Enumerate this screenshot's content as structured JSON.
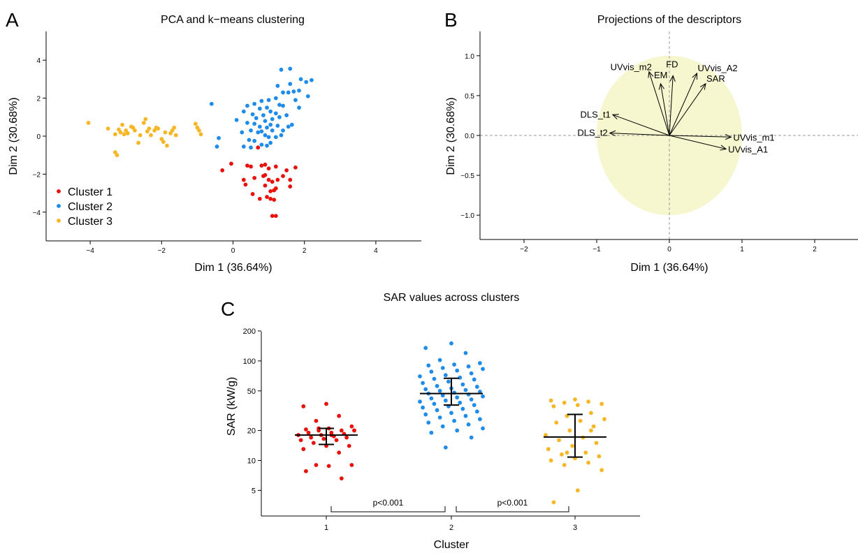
{
  "chart_data": [
    {
      "panel_letter": "A",
      "type": "scatter",
      "title": "PCA and k−means clustering",
      "xlabel": "Dim 1 (36.64%)",
      "ylabel": "Dim 2 (30.68%)",
      "xlim": [
        -5,
        5
      ],
      "ylim": [
        -5,
        5
      ],
      "xticks": [
        -4,
        -2,
        0,
        2,
        4
      ],
      "yticks": [
        -4,
        -2,
        0,
        2,
        4
      ],
      "grid": false,
      "legend_position": "bottom-left",
      "series": [
        {
          "name": "Cluster 1",
          "color": "#e8120c",
          "points": [
            [
              0.7,
              -0.6
            ],
            [
              -0.3,
              -1.8
            ],
            [
              -0.05,
              -1.45
            ],
            [
              0.4,
              -1.55
            ],
            [
              0.5,
              -1.6
            ],
            [
              0.8,
              -1.55
            ],
            [
              0.9,
              -1.5
            ],
            [
              1.0,
              -1.7
            ],
            [
              1.2,
              -1.6
            ],
            [
              1.5,
              -1.8
            ],
            [
              1.75,
              -1.65
            ],
            [
              0.3,
              -2.3
            ],
            [
              0.6,
              -2.2
            ],
            [
              0.9,
              -2.05
            ],
            [
              1.0,
              -2.3
            ],
            [
              1.1,
              -2.4
            ],
            [
              1.25,
              -2.3
            ],
            [
              1.6,
              -2.3
            ],
            [
              0.35,
              -2.55
            ],
            [
              0.9,
              -2.6
            ],
            [
              1.2,
              -2.75
            ],
            [
              1.6,
              -2.65
            ],
            [
              1.05,
              -2.9
            ],
            [
              1.15,
              -2.85
            ],
            [
              0.75,
              -3.3
            ],
            [
              0.95,
              -3.2
            ],
            [
              1.05,
              -3.3
            ],
            [
              1.15,
              -3.35
            ],
            [
              0.55,
              -3.05
            ],
            [
              1.1,
              -4.2
            ],
            [
              1.2,
              -4.2
            ],
            [
              0.85,
              -2.1
            ],
            [
              1.4,
              -2.1
            ]
          ]
        },
        {
          "name": "Cluster 2",
          "color": "#1f8cea",
          "points": [
            [
              1.6,
              3.55
            ],
            [
              1.35,
              3.5
            ],
            [
              2.2,
              2.95
            ],
            [
              1.9,
              3.0
            ],
            [
              1.25,
              2.65
            ],
            [
              1.6,
              2.75
            ],
            [
              2.05,
              2.85
            ],
            [
              1.4,
              2.3
            ],
            [
              1.7,
              2.35
            ],
            [
              1.85,
              2.4
            ],
            [
              2.1,
              2.1
            ],
            [
              0.8,
              1.85
            ],
            [
              1.0,
              1.9
            ],
            [
              1.2,
              2.0
            ],
            [
              1.55,
              2.3
            ],
            [
              1.75,
              1.9
            ],
            [
              1.85,
              1.5
            ],
            [
              -0.6,
              1.7
            ],
            [
              0.4,
              1.6
            ],
            [
              0.6,
              1.7
            ],
            [
              0.75,
              1.45
            ],
            [
              0.95,
              1.5
            ],
            [
              1.05,
              1.3
            ],
            [
              1.2,
              1.2
            ],
            [
              1.4,
              1.6
            ],
            [
              1.3,
              1.65
            ],
            [
              0.3,
              1.3
            ],
            [
              0.55,
              1.15
            ],
            [
              0.65,
              0.95
            ],
            [
              0.85,
              1.1
            ],
            [
              0.9,
              0.8
            ],
            [
              1.1,
              0.9
            ],
            [
              1.3,
              1.0
            ],
            [
              1.5,
              1.1
            ],
            [
              0.1,
              0.85
            ],
            [
              0.4,
              0.7
            ],
            [
              0.6,
              0.65
            ],
            [
              0.75,
              0.5
            ],
            [
              0.95,
              0.45
            ],
            [
              1.05,
              0.6
            ],
            [
              1.25,
              0.55
            ],
            [
              1.4,
              0.3
            ],
            [
              1.55,
              0.5
            ],
            [
              1.65,
              0.6
            ],
            [
              0.25,
              0.2
            ],
            [
              0.5,
              0.3
            ],
            [
              0.7,
              0.2
            ],
            [
              0.9,
              0.05
            ],
            [
              1.0,
              -0.05
            ],
            [
              1.2,
              -0.05
            ],
            [
              1.35,
              0.05
            ],
            [
              -0.4,
              -0.1
            ],
            [
              0.45,
              -0.2
            ],
            [
              0.6,
              -0.25
            ],
            [
              0.8,
              -0.45
            ],
            [
              0.95,
              -0.5
            ],
            [
              1.05,
              -0.35
            ],
            [
              -0.45,
              -0.55
            ],
            [
              0.3,
              -0.55
            ],
            [
              0.5,
              -0.6
            ],
            [
              1.1,
              0.3
            ],
            [
              0.8,
              0.25
            ]
          ]
        },
        {
          "name": "Cluster 3",
          "color": "#f6b626",
          "points": [
            [
              -4.05,
              0.7
            ],
            [
              -3.5,
              0.4
            ],
            [
              -3.3,
              0.1
            ],
            [
              -3.2,
              0.35
            ],
            [
              -3.15,
              0.2
            ],
            [
              -3.1,
              0.6
            ],
            [
              -3.05,
              0.1
            ],
            [
              -3.0,
              0.3
            ],
            [
              -2.95,
              0.15
            ],
            [
              -2.85,
              0.5
            ],
            [
              -2.75,
              0.3
            ],
            [
              -2.65,
              -0.35
            ],
            [
              -2.6,
              0.05
            ],
            [
              -2.5,
              0.7
            ],
            [
              -2.45,
              0.9
            ],
            [
              -2.4,
              0.25
            ],
            [
              -2.35,
              0.4
            ],
            [
              -2.3,
              0.05
            ],
            [
              -2.2,
              0.3
            ],
            [
              -2.15,
              0.45
            ],
            [
              -2.1,
              0.4
            ],
            [
              -2.0,
              -0.15
            ],
            [
              -1.95,
              -0.3
            ],
            [
              -1.9,
              0.2
            ],
            [
              -1.85,
              -0.5
            ],
            [
              -1.75,
              0.15
            ],
            [
              -1.7,
              0.3
            ],
            [
              -1.65,
              0.45
            ],
            [
              -1.05,
              0.65
            ],
            [
              -1.0,
              0.45
            ],
            [
              -0.95,
              0.3
            ],
            [
              -0.9,
              0.1
            ],
            [
              -3.3,
              -0.85
            ],
            [
              -3.25,
              -1.0
            ],
            [
              -2.8,
              0.45
            ],
            [
              -1.6,
              0.05
            ]
          ]
        }
      ]
    },
    {
      "panel_letter": "B",
      "type": "scatter",
      "subtype": "variable-correlation-circle",
      "title": "Projections of the descriptors",
      "xlabel": "Dim 1 (36.64%)",
      "ylabel": "Dim 2 (30.68%)",
      "xlim": [
        -2.5,
        2.5
      ],
      "ylim": [
        -1.2,
        1.2
      ],
      "xticks": [
        -2,
        -1,
        0,
        1,
        2
      ],
      "yticks": [
        -1.0,
        -0.5,
        0.0,
        0.5,
        1.0
      ],
      "grid": false,
      "circle_color": "#f6f6cf",
      "vectors": [
        {
          "label": "UVvis_m2",
          "x": -0.28,
          "y": 0.8
        },
        {
          "label": "EM",
          "x": -0.12,
          "y": 0.65
        },
        {
          "label": "FD",
          "x": 0.05,
          "y": 0.75
        },
        {
          "label": "UVvis_A2",
          "x": 0.38,
          "y": 0.78
        },
        {
          "label": "SAR",
          "x": 0.5,
          "y": 0.65
        },
        {
          "label": "DLS_t1",
          "x": -0.78,
          "y": 0.26
        },
        {
          "label": "DLS_t2",
          "x": -0.82,
          "y": 0.03
        },
        {
          "label": "UVvis_m1",
          "x": 0.85,
          "y": -0.02
        },
        {
          "label": "UVvis_A1",
          "x": 0.78,
          "y": -0.17
        }
      ]
    },
    {
      "panel_letter": "C",
      "type": "scatter",
      "title": "SAR values across clusters",
      "xlabel": "Cluster",
      "ylabel": "SAR (kW/g)",
      "yscale": "log",
      "categories": [
        "1",
        "2",
        "3"
      ],
      "ylim": [
        3.7,
        200
      ],
      "yticks": [
        5,
        10,
        20,
        50,
        100,
        200
      ],
      "grid": false,
      "summary": [
        {
          "cluster": "1",
          "median": 18,
          "lower": 14.5,
          "upper": 21,
          "color": "#e8120c"
        },
        {
          "cluster": "2",
          "median": 47,
          "lower": 36,
          "upper": 67,
          "color": "#1f8cea"
        },
        {
          "cluster": "3",
          "median": 17.2,
          "lower": 10.8,
          "upper": 29,
          "color": "#f6b626"
        }
      ],
      "comparisons": [
        {
          "from": "1",
          "to": "2",
          "label": "p<0.001"
        },
        {
          "from": "2",
          "to": "3",
          "label": "p<0.001"
        }
      ],
      "series": [
        {
          "name": "1",
          "color": "#e8120c",
          "values": [
            37,
            35,
            28,
            25,
            22,
            21,
            20.5,
            20,
            20,
            20,
            19,
            19,
            18.5,
            18,
            18,
            17.5,
            17,
            17,
            16.5,
            16,
            16,
            15,
            14,
            14,
            13,
            12,
            9,
            9,
            8.8,
            7.8,
            6.6,
            21,
            20,
            18
          ]
        },
        {
          "name": "2",
          "color": "#1f8cea",
          "values": [
            150,
            135,
            120,
            102,
            95,
            92,
            90,
            88,
            85,
            83,
            80,
            78,
            75,
            72,
            70,
            68,
            66,
            65,
            62,
            60,
            58,
            56,
            55,
            53,
            52,
            51,
            50,
            49,
            48,
            47,
            46,
            45,
            44,
            43,
            42,
            41,
            40,
            39,
            38,
            37,
            36,
            35,
            34,
            33,
            32,
            31,
            30,
            29,
            28,
            27,
            26,
            25,
            24,
            23,
            22,
            21,
            20,
            19,
            17,
            13.5
          ]
        },
        {
          "name": "3",
          "color": "#f6b626",
          "values": [
            41,
            40,
            39,
            38,
            37,
            36,
            35,
            30,
            28,
            26,
            25,
            24,
            22,
            20,
            18,
            17,
            16,
            15,
            14,
            13,
            12,
            11.5,
            11,
            10.5,
            10,
            9.5,
            9,
            8,
            5,
            3.8,
            20,
            12
          ]
        }
      ]
    }
  ]
}
